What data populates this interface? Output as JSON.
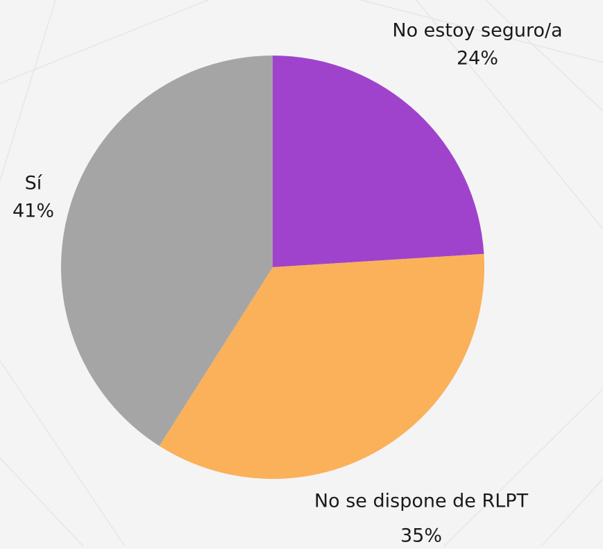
{
  "chart_data": {
    "type": "pie",
    "categories": [
      "No estoy seguro/a",
      "No se dispone de RLPT",
      "Sí"
    ],
    "values": [
      24,
      35,
      41
    ],
    "value_labels": [
      "24%",
      "35%",
      "41%"
    ],
    "colors": [
      "#9f43cc",
      "#fab15a",
      "#a5a5a5"
    ]
  }
}
